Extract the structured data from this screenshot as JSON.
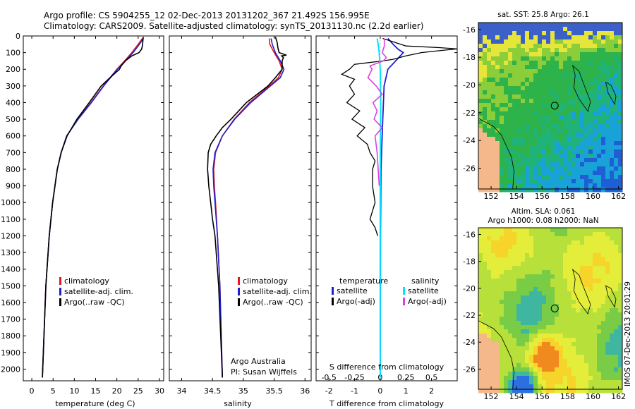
{
  "figure": {
    "title_line1": "Argo profile: CS 5904255_12 02-Dec-2013 20131202_367 21.492S 156.995E",
    "title_line2": "Climatology: CARS2009. Satellite-adjusted climatology: synTS_20131130.nc (2.2d earlier)",
    "footer_note": "Argo Australia",
    "footer_pi": "PI: Susan Wijffels",
    "side_stamp": "IMOS 07-Dec-2013 20:01:29"
  },
  "colors": {
    "climatology": "#e41a1c",
    "satellite": "#1f1fcf",
    "argo": "#000000",
    "salinity_satellite": "#00e5ff",
    "salinity_argo": "#e040e0"
  },
  "chart_data": [
    {
      "type": "line",
      "id": "temperature",
      "xlabel": "temperature (deg C)",
      "ylabel": "depth",
      "xlim": [
        -2,
        31
      ],
      "ylim": [
        2070,
        0
      ],
      "xticks": [
        0,
        5,
        10,
        15,
        20,
        25,
        30
      ],
      "yticks": [
        0,
        100,
        200,
        300,
        400,
        500,
        600,
        700,
        800,
        900,
        1000,
        1100,
        1200,
        1300,
        1400,
        1500,
        1600,
        1700,
        1800,
        1900,
        2000
      ],
      "legend": [
        "climatology",
        "satellite-adj. clim.",
        "Argo(..raw -QC)"
      ],
      "series": [
        {
          "name": "climatology",
          "depth": [
            15,
            50,
            100,
            150,
            200,
            300,
            400,
            500,
            600,
            700,
            800,
            1000,
            1200,
            1500,
            2050
          ],
          "values": [
            26.0,
            25.0,
            23.5,
            21.8,
            20.0,
            16.8,
            13.9,
            10.8,
            8.2,
            6.9,
            6.0,
            4.9,
            4.1,
            3.3,
            2.5
          ]
        },
        {
          "name": "satellite-adj. clim.",
          "depth": [
            15,
            50,
            100,
            150,
            200,
            300,
            400,
            500,
            600,
            700,
            800,
            1000,
            1200,
            1500,
            2050
          ],
          "values": [
            26.2,
            25.3,
            23.8,
            22.0,
            20.1,
            16.9,
            14.0,
            10.9,
            8.2,
            6.9,
            6.0,
            4.9,
            4.1,
            3.3,
            2.5
          ]
        },
        {
          "name": "Argo(..raw -QC)",
          "depth": [
            5,
            30,
            60,
            80,
            100,
            120,
            150,
            180,
            200,
            250,
            300,
            400,
            500,
            600,
            700,
            800,
            1000,
            1200,
            1500,
            2050
          ],
          "values": [
            26.2,
            26.1,
            26.0,
            25.8,
            25.2,
            23.5,
            22.0,
            21.0,
            20.6,
            18.4,
            16.3,
            13.5,
            10.6,
            8.3,
            6.9,
            6.0,
            4.9,
            4.1,
            3.3,
            2.5
          ]
        }
      ]
    },
    {
      "type": "line",
      "id": "salinity",
      "xlabel": "salinity",
      "ylabel": "depth",
      "xlim": [
        33.8,
        36.1
      ],
      "ylim": [
        2070,
        0
      ],
      "xticks": [
        34,
        34.5,
        35,
        35.5,
        36
      ],
      "legend": [
        "climatology",
        "satellite-adj. clim.",
        "Argo(..raw -QC)"
      ],
      "series": [
        {
          "name": "climatology",
          "depth": [
            15,
            50,
            100,
            150,
            200,
            250,
            300,
            400,
            500,
            600,
            700,
            800,
            900,
            1000,
            1200,
            1500,
            2050
          ],
          "values": [
            35.42,
            35.43,
            35.5,
            35.58,
            35.63,
            35.57,
            35.42,
            35.1,
            34.85,
            34.66,
            34.55,
            34.52,
            34.53,
            34.55,
            34.58,
            34.62,
            34.66
          ]
        },
        {
          "name": "satellite-adj. clim.",
          "depth": [
            15,
            50,
            100,
            150,
            200,
            250,
            300,
            400,
            500,
            600,
            700,
            800,
            900,
            1000,
            1200,
            1500,
            2050
          ],
          "values": [
            35.45,
            35.47,
            35.52,
            35.6,
            35.66,
            35.6,
            35.44,
            35.12,
            34.86,
            34.66,
            34.54,
            34.51,
            34.52,
            34.54,
            34.58,
            34.62,
            34.66
          ]
        },
        {
          "name": "Argo(..raw -QC)",
          "depth": [
            5,
            40,
            70,
            100,
            115,
            120,
            130,
            150,
            200,
            250,
            300,
            400,
            500,
            550,
            600,
            650,
            700,
            800,
            850,
            900,
            1000,
            1100,
            1200,
            1500,
            2050
          ],
          "values": [
            35.52,
            35.55,
            35.56,
            35.58,
            35.7,
            35.62,
            35.65,
            35.63,
            35.63,
            35.52,
            35.4,
            35.05,
            34.8,
            34.66,
            34.56,
            34.47,
            34.43,
            34.42,
            34.43,
            34.44,
            34.47,
            34.5,
            34.54,
            34.6,
            34.66
          ]
        }
      ]
    },
    {
      "type": "line",
      "id": "differences",
      "xlabel": "T difference from climatology",
      "xlabel_top": "S difference from climatology",
      "xlim": [
        -2.5,
        3.0
      ],
      "ylim": [
        2070,
        0
      ],
      "xticks": [
        -2,
        -1,
        0,
        1,
        2
      ],
      "xticks_s": [
        -0.5,
        -0.25,
        0,
        0.25,
        0.5
      ],
      "legend_temperature_title": "temperature",
      "legend_salinity_title": "salinity",
      "legend": [
        "satellite",
        "Argo(-adj)",
        "satellite",
        "Argo(-adj)"
      ],
      "series": [
        {
          "name": "T satellite",
          "depth": [
            15,
            50,
            80,
            100,
            150,
            200,
            300,
            500,
            800,
            1200,
            2050
          ],
          "values": [
            0.3,
            0.5,
            0.7,
            0.9,
            0.6,
            0.3,
            0.15,
            0.1,
            0.03,
            0.01,
            0.0
          ]
        },
        {
          "name": "T Argo(-adj)",
          "depth": [
            15,
            60,
            70,
            78,
            85,
            100,
            120,
            140,
            150,
            170,
            200,
            230,
            260,
            300,
            350,
            400,
            450,
            500,
            550,
            600,
            650,
            700,
            750,
            800,
            900,
            1000,
            1100,
            1150,
            1200
          ],
          "values": [
            0.1,
            1.0,
            2.3,
            3.0,
            2.5,
            1.6,
            1.0,
            0.5,
            0.1,
            -1.0,
            -1.2,
            -1.5,
            -1.0,
            -1.2,
            -1.0,
            -1.3,
            -0.8,
            -1.1,
            -0.6,
            -0.9,
            -0.5,
            -0.4,
            -0.2,
            -0.3,
            -0.3,
            -0.2,
            -0.4,
            -0.2,
            -0.1
          ]
        },
        {
          "name": "S satellite",
          "depth": [
            15,
            50,
            100,
            200,
            400,
            800,
            2050
          ],
          "values": [
            -0.03,
            -0.02,
            -0.01,
            0.0,
            0.005,
            0.0,
            0.0
          ]
        },
        {
          "name": "S Argo(-adj)",
          "depth": [
            15,
            60,
            100,
            130,
            150,
            180,
            200,
            250,
            300,
            350,
            400,
            450,
            500,
            550,
            600,
            700,
            800,
            900
          ],
          "values": [
            0.04,
            0.04,
            0.02,
            0.06,
            0.03,
            -0.1,
            -0.08,
            -0.12,
            -0.04,
            0.02,
            -0.07,
            -0.03,
            -0.06,
            0.02,
            -0.05,
            -0.03,
            -0.02,
            -0.01
          ]
        }
      ]
    },
    {
      "type": "heatmap",
      "id": "sst-map",
      "title": "sat. SST: 25.8 Argo: 26.1",
      "xticks": [
        152,
        154,
        156,
        158,
        160,
        162
      ],
      "yticks": [
        -16,
        -18,
        -20,
        -22,
        -24,
        -26
      ],
      "xlim": [
        151,
        162.3
      ],
      "ylim": [
        -27.5,
        -15.5
      ],
      "marker": {
        "lon": 156.995,
        "lat": -21.492
      }
    },
    {
      "type": "heatmap",
      "id": "sla-map",
      "title": "Altim. SLA: 0.061",
      "subtitle": "Argo h1000: 0.08 h2000: NaN",
      "xticks": [
        152,
        154,
        156,
        158,
        160,
        162
      ],
      "yticks": [
        -16,
        -18,
        -20,
        -22,
        -24,
        -26
      ],
      "xlim": [
        151,
        162.3
      ],
      "ylim": [
        -27.5,
        -15.5
      ],
      "marker": {
        "lon": 156.995,
        "lat": -21.492
      }
    }
  ]
}
